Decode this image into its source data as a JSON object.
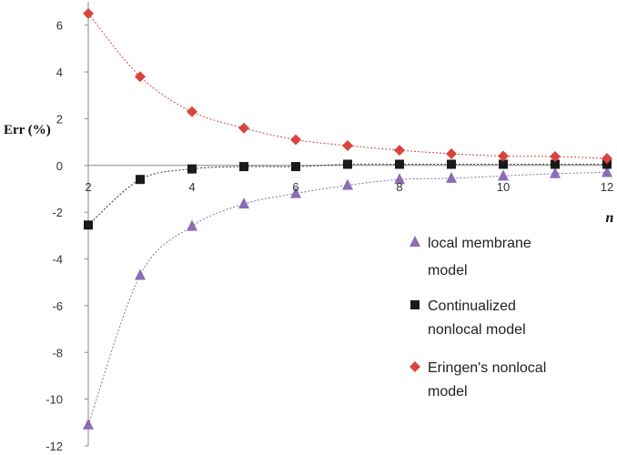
{
  "chart_data": {
    "type": "scatter",
    "xlabel": "n",
    "ylabel": "Err (%)",
    "xlim": [
      2,
      12
    ],
    "ylim": [
      -12,
      7
    ],
    "x_ticks": [
      "2",
      "4",
      "6",
      "8",
      "10",
      "12"
    ],
    "y_ticks": [
      "6",
      "4",
      "2",
      "0",
      "-2",
      "-4",
      "-6",
      "-8",
      "-10",
      "-12"
    ],
    "x": [
      2,
      3,
      4,
      5,
      6,
      7,
      8,
      9,
      10,
      11,
      12
    ],
    "series": [
      {
        "name_lines": [
          "local membrane",
          "model"
        ],
        "marker": "triangle",
        "color": "#8B6DB5",
        "trend_color": "#8B6DB5",
        "values": [
          -11.1,
          -4.7,
          -2.6,
          -1.65,
          -1.2,
          -0.85,
          -0.6,
          -0.55,
          -0.45,
          -0.35,
          -0.3
        ]
      },
      {
        "name_lines": [
          "Continualized",
          "nonlocal model"
        ],
        "marker": "square",
        "color": "#1A1A1A",
        "trend_color": "#333333",
        "values": [
          -2.55,
          -0.6,
          -0.15,
          -0.05,
          -0.05,
          0.05,
          0.05,
          0.05,
          0.05,
          0.05,
          0.05
        ]
      },
      {
        "name_lines": [
          "Eringen's nonlocal",
          "model"
        ],
        "marker": "diamond",
        "color": "#D9453E",
        "trend_color": "#D9453E",
        "values": [
          6.5,
          3.8,
          2.3,
          1.6,
          1.1,
          0.85,
          0.65,
          0.5,
          0.4,
          0.38,
          0.3
        ]
      }
    ],
    "grid": false,
    "legend_position": "bottom-right"
  }
}
